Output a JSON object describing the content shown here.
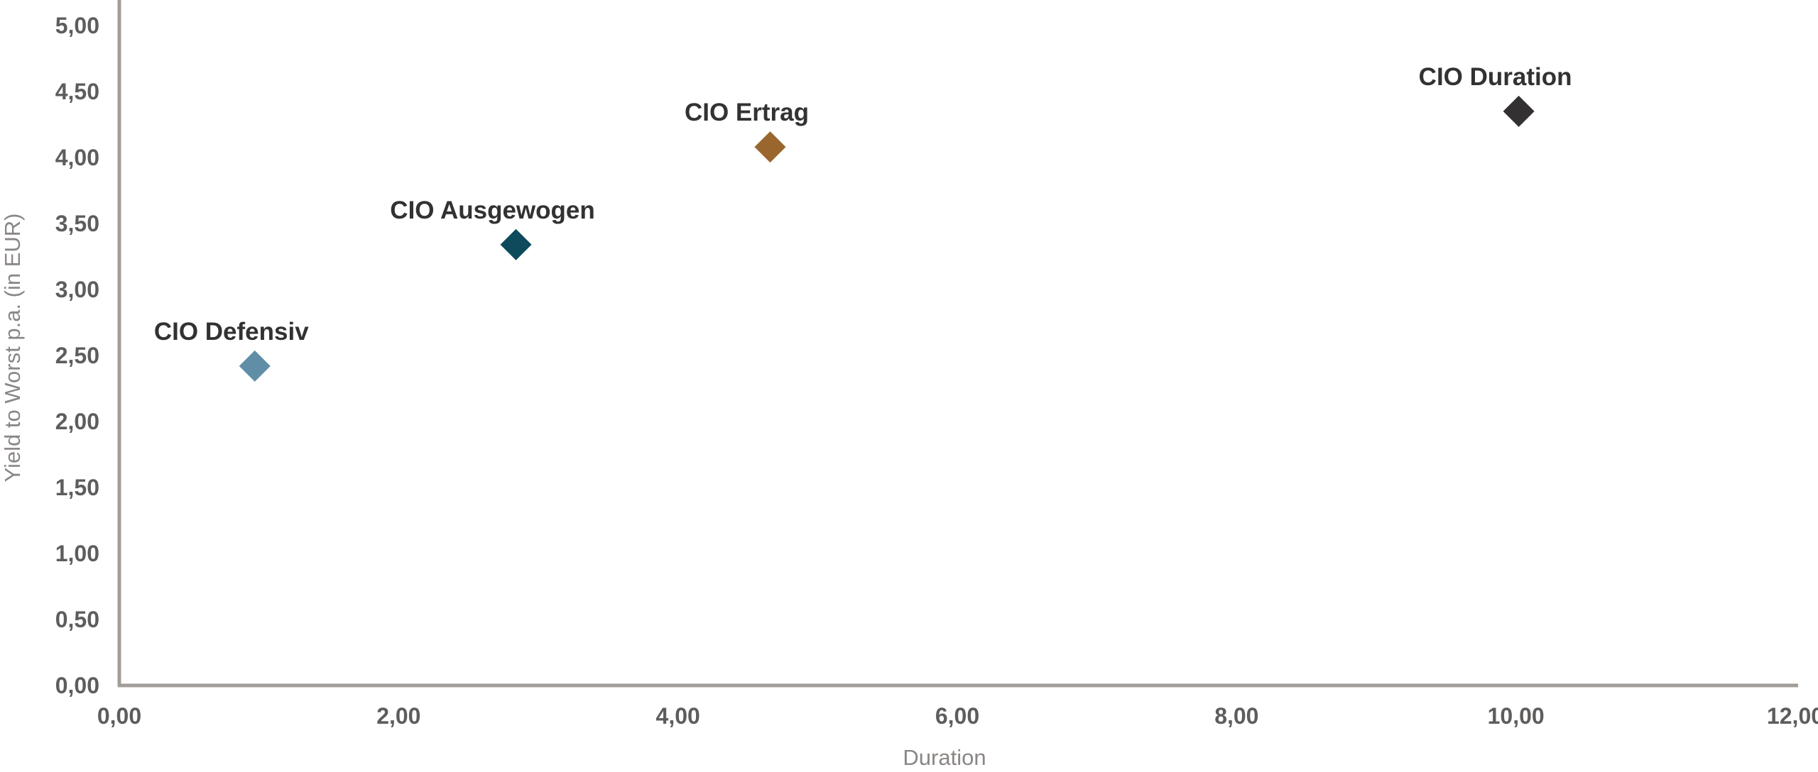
{
  "chart_data": {
    "type": "scatter",
    "title": "",
    "xlabel": "Duration",
    "ylabel": "Yield to Worst p.a. (in EUR)",
    "xlim": [
      0,
      12
    ],
    "ylim": [
      0,
      5
    ],
    "x_ticks": [
      "0,00",
      "2,00",
      "4,00",
      "6,00",
      "8,00",
      "10,00",
      "12,00"
    ],
    "y_ticks": [
      "0,00",
      "0,50",
      "1,00",
      "1,50",
      "2,00",
      "2,50",
      "3,00",
      "3,50",
      "4,00",
      "4,50",
      "5,00"
    ],
    "grid": false,
    "legend": "none",
    "marker": "diamond",
    "axis_color": "#a39d98",
    "points": [
      {
        "label": "CIO Defensiv",
        "x": 0.97,
        "y": 2.42,
        "color": "#5f8ea6"
      },
      {
        "label": "CIO Ausgewogen",
        "x": 2.84,
        "y": 3.34,
        "color": "#0d4a5c"
      },
      {
        "label": "CIO Ertrag",
        "x": 4.66,
        "y": 4.08,
        "color": "#99672e"
      },
      {
        "label": "CIO Duration",
        "x": 10.02,
        "y": 4.35,
        "color": "#333132"
      }
    ]
  }
}
